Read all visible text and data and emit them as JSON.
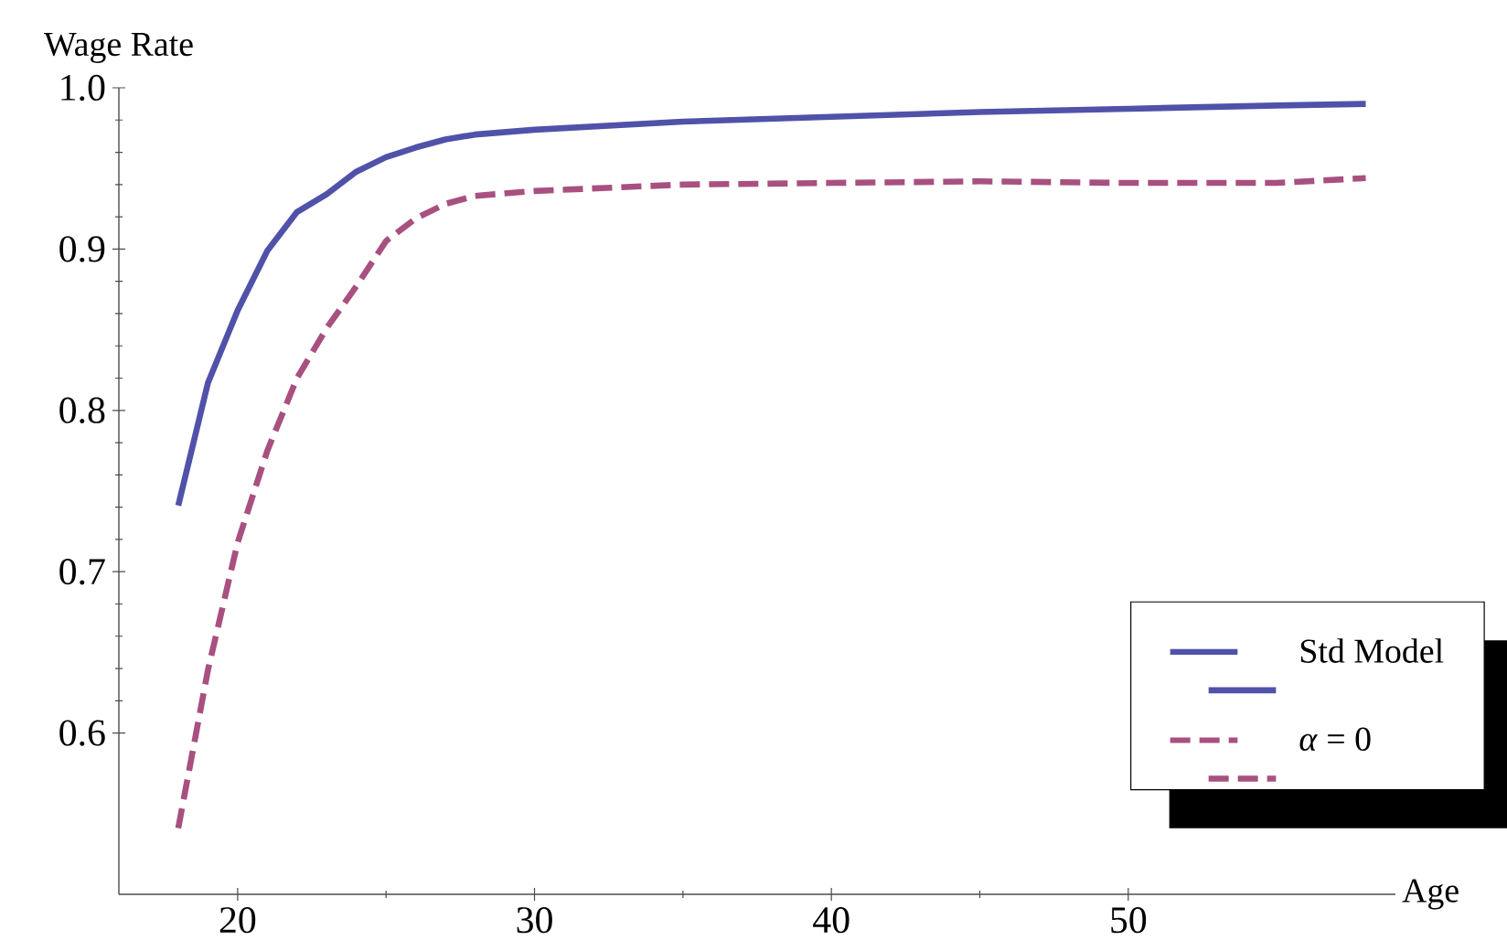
{
  "chart_data": {
    "type": "line",
    "xlabel": "Age",
    "ylabel": "Wage Rate",
    "xlim": [
      16,
      59
    ],
    "ylim": [
      0.5,
      1.0
    ],
    "xticks": [
      20,
      30,
      40,
      50
    ],
    "yticks": [
      0.6,
      0.7,
      0.8,
      0.9,
      {
        "value": 1.0,
        "label": "1.0"
      }
    ],
    "legend": "bottom right",
    "series": [
      {
        "name": "Std Model",
        "color": "#5052a9",
        "line_style": "solid",
        "x": [
          18,
          19,
          20,
          21,
          22,
          23,
          24,
          25,
          26,
          27,
          28,
          30,
          35,
          40,
          45,
          50,
          55,
          58
        ],
        "values": [
          0.741,
          0.817,
          0.862,
          0.899,
          0.923,
          0.934,
          0.948,
          0.957,
          0.963,
          0.968,
          0.971,
          0.974,
          0.979,
          0.982,
          0.985,
          0.987,
          0.989,
          0.99
        ]
      },
      {
        "name": "*α* = 0",
        "color": "#a8507f",
        "line_style": "dashed",
        "x": [
          18,
          19,
          20,
          21,
          22,
          23,
          24,
          25,
          26,
          27,
          28,
          30,
          35,
          40,
          45,
          50,
          55,
          58
        ],
        "values": [
          0.541,
          0.639,
          0.718,
          0.775,
          0.82,
          0.851,
          0.877,
          0.905,
          0.919,
          0.928,
          0.933,
          0.936,
          0.94,
          0.941,
          0.942,
          0.941,
          0.941,
          0.944
        ]
      }
    ]
  }
}
